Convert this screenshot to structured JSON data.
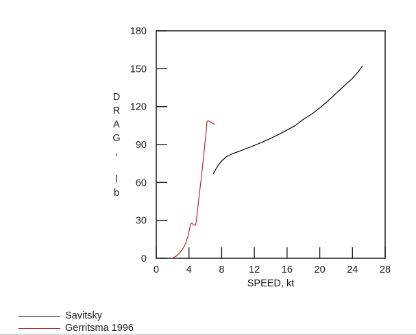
{
  "window": {
    "background_color": "#ffffff",
    "bottom_edge_color": "#d8d8d8"
  },
  "chart_data": {
    "type": "line",
    "title": "",
    "xlabel": "SPEED, kt",
    "ylabel": "DRAG, lb",
    "xlim": [
      0,
      28
    ],
    "ylim": [
      0,
      180
    ],
    "xticks": [
      0,
      4,
      8,
      12,
      16,
      20,
      24,
      28
    ],
    "yticks": [
      0,
      30,
      60,
      90,
      120,
      150,
      180
    ],
    "grid": false,
    "legend_position": "bottom-left",
    "series": [
      {
        "name": "Savitsky",
        "color": "#000000",
        "points": [
          [
            7.0,
            67
          ],
          [
            7.2,
            69.5
          ],
          [
            7.5,
            73
          ],
          [
            8.0,
            77
          ],
          [
            8.6,
            80.5
          ],
          [
            9.3,
            82.7
          ],
          [
            10.2,
            84.8
          ],
          [
            11.1,
            87
          ],
          [
            12.0,
            89.3
          ],
          [
            13.0,
            92
          ],
          [
            14.0,
            95
          ],
          [
            15.0,
            98
          ],
          [
            16.0,
            101.5
          ],
          [
            17.0,
            105
          ],
          [
            18.0,
            110
          ],
          [
            19.0,
            114
          ],
          [
            20.0,
            119
          ],
          [
            21.0,
            124.5
          ],
          [
            22.0,
            130.5
          ],
          [
            23.0,
            136.5
          ],
          [
            24.0,
            142.5
          ],
          [
            24.7,
            147.5
          ],
          [
            25.2,
            152
          ]
        ]
      },
      {
        "name": "Gerritsma 1996",
        "color": "#b42a28",
        "points": [
          [
            2.1,
            0.5
          ],
          [
            2.5,
            2
          ],
          [
            2.9,
            4.5
          ],
          [
            3.3,
            8
          ],
          [
            3.6,
            12
          ],
          [
            3.9,
            18
          ],
          [
            4.05,
            22.5
          ],
          [
            4.2,
            27
          ],
          [
            4.35,
            28
          ],
          [
            4.55,
            26.5
          ],
          [
            4.75,
            26
          ],
          [
            4.9,
            29
          ],
          [
            5.0,
            35
          ],
          [
            5.15,
            44
          ],
          [
            5.35,
            55
          ],
          [
            5.55,
            66
          ],
          [
            5.75,
            78
          ],
          [
            5.95,
            91
          ],
          [
            6.1,
            100
          ],
          [
            6.2,
            108
          ],
          [
            6.35,
            109
          ],
          [
            6.6,
            108
          ],
          [
            7.1,
            106
          ]
        ]
      }
    ]
  },
  "legend": {
    "items": [
      {
        "label": "Savitsky",
        "color": "#000000"
      },
      {
        "label": "Gerritsma 1996",
        "color": "#b03030"
      }
    ]
  }
}
